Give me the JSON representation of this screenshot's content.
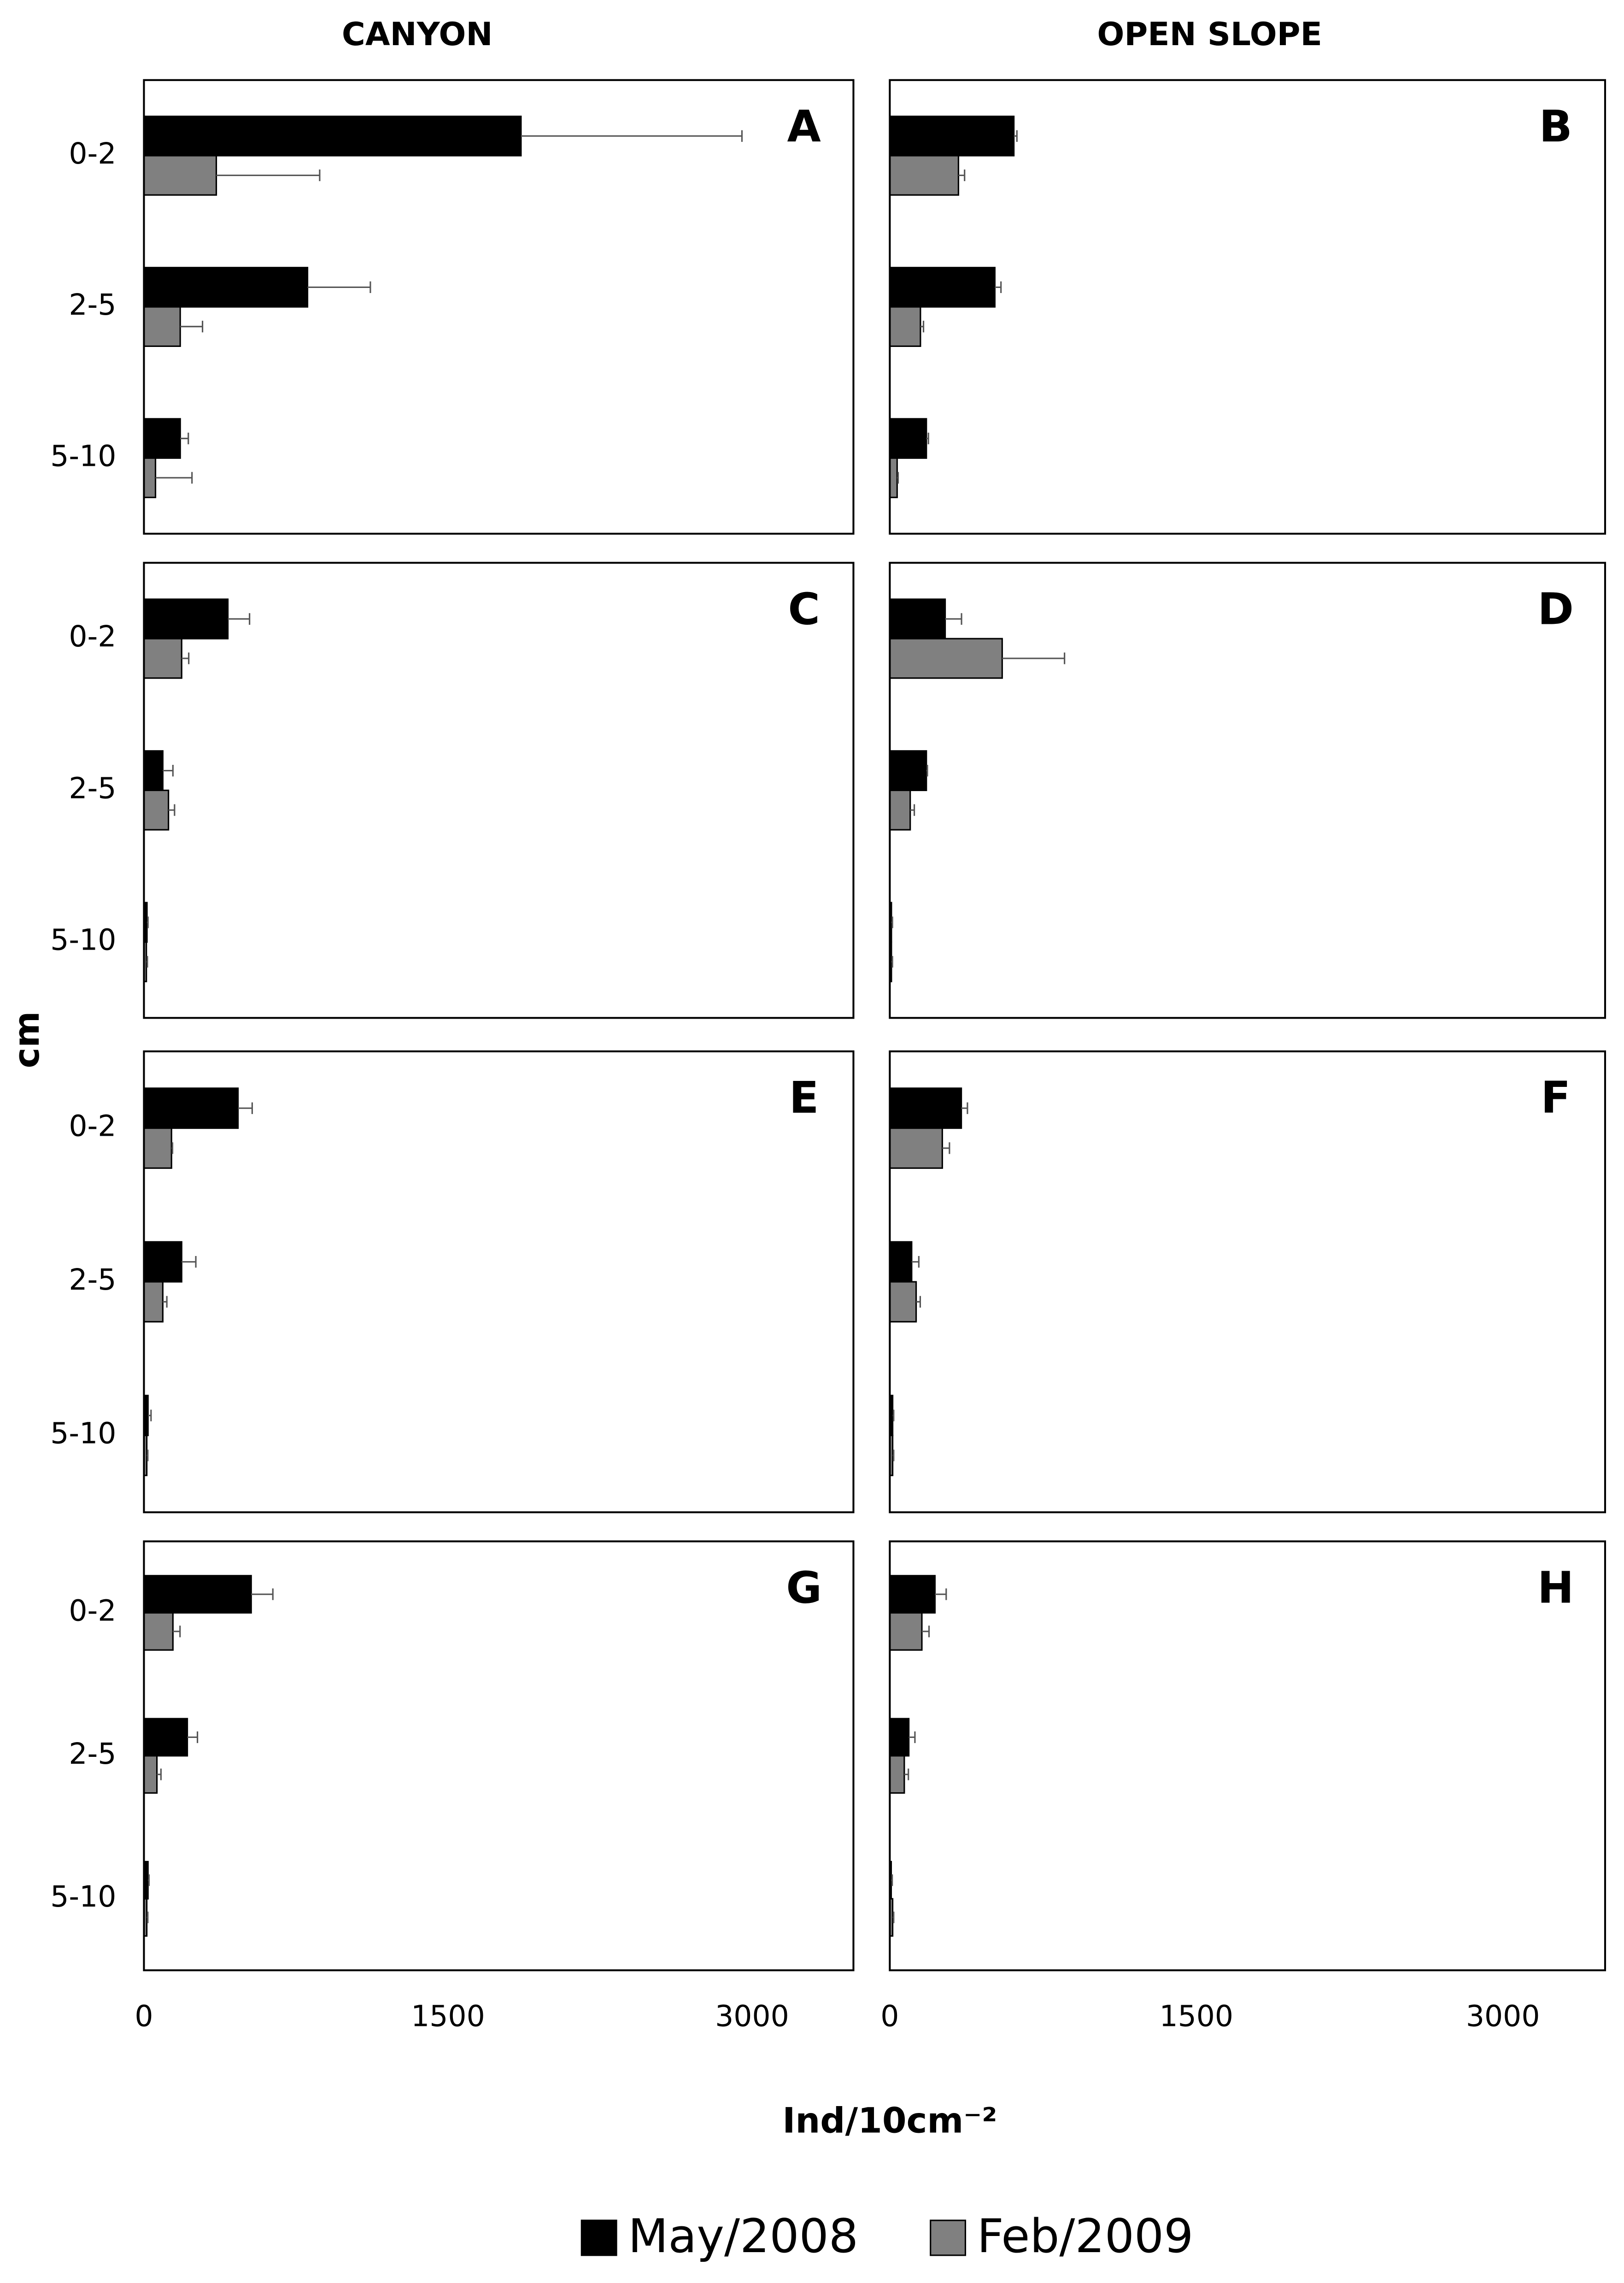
{
  "column_titles": [
    "CANYON",
    "OPEN SLOPE"
  ],
  "y_label": "cm",
  "x_label": "Ind/10cm⁻²",
  "chart_data": [
    {
      "type": "bar",
      "title": "A",
      "categories": [
        "0-2",
        "2-5",
        "5-10"
      ],
      "xlim": [
        0,
        3500
      ],
      "series": [
        {
          "name": "May/2008",
          "color": "#000000",
          "values": [
            1860,
            807,
            179
          ],
          "errors": [
            1090,
            310,
            40
          ]
        },
        {
          "name": "Feb/2009",
          "color": "#808080",
          "values": [
            357,
            179,
            57
          ],
          "errors": [
            510,
            110,
            180
          ]
        }
      ]
    },
    {
      "type": "bar",
      "title": "B",
      "categories": [
        "0-2",
        "2-5",
        "5-10"
      ],
      "xlim": [
        0,
        3500
      ],
      "series": [
        {
          "name": "May/2008",
          "color": "#000000",
          "values": [
            607,
            514,
            179
          ],
          "errors": [
            15,
            30,
            10
          ]
        },
        {
          "name": "Feb/2009",
          "color": "#808080",
          "values": [
            336,
            150,
            36
          ],
          "errors": [
            30,
            15,
            5
          ]
        }
      ]
    },
    {
      "type": "bar",
      "title": "C",
      "categories": [
        "0-2",
        "2-5",
        "5-10"
      ],
      "xlim": [
        0,
        3500
      ],
      "series": [
        {
          "name": "May/2008",
          "color": "#000000",
          "values": [
            414,
            93,
            15
          ],
          "errors": [
            107,
            50,
            5
          ]
        },
        {
          "name": "Feb/2009",
          "color": "#808080",
          "values": [
            186,
            121,
            12
          ],
          "errors": [
            35,
            30,
            5
          ]
        }
      ]
    },
    {
      "type": "bar",
      "title": "D",
      "categories": [
        "0-2",
        "2-5",
        "5-10"
      ],
      "xlim": [
        0,
        3500
      ],
      "series": [
        {
          "name": "May/2008",
          "color": "#000000",
          "values": [
            271,
            179,
            8
          ],
          "errors": [
            80,
            5,
            5
          ]
        },
        {
          "name": "Feb/2009",
          "color": "#808080",
          "values": [
            550,
            100,
            8
          ],
          "errors": [
            305,
            20,
            5
          ]
        }
      ]
    },
    {
      "type": "bar",
      "title": "E",
      "categories": [
        "0-2",
        "2-5",
        "5-10"
      ],
      "xlim": [
        0,
        3500
      ],
      "series": [
        {
          "name": "May/2008",
          "color": "#000000",
          "values": [
            464,
            186,
            20
          ],
          "errors": [
            70,
            70,
            15
          ]
        },
        {
          "name": "Feb/2009",
          "color": "#808080",
          "values": [
            136,
            93,
            14
          ],
          "errors": [
            5,
            20,
            5
          ]
        }
      ]
    },
    {
      "type": "bar",
      "title": "F",
      "categories": [
        "0-2",
        "2-5",
        "5-10"
      ],
      "xlim": [
        0,
        3500
      ],
      "series": [
        {
          "name": "May/2008",
          "color": "#000000",
          "values": [
            350,
            107,
            14
          ],
          "errors": [
            30,
            35,
            5
          ]
        },
        {
          "name": "Feb/2009",
          "color": "#808080",
          "values": [
            257,
            129,
            14
          ],
          "errors": [
            35,
            20,
            5
          ]
        }
      ]
    },
    {
      "type": "bar",
      "title": "G",
      "categories": [
        "0-2",
        "2-5",
        "5-10"
      ],
      "xlim": [
        0,
        3500
      ],
      "xticks": [
        0,
        1500,
        3000
      ],
      "series": [
        {
          "name": "May/2008",
          "color": "#000000",
          "values": [
            529,
            214,
            20
          ],
          "errors": [
            107,
            50,
            5
          ]
        },
        {
          "name": "Feb/2009",
          "color": "#808080",
          "values": [
            143,
            64,
            14
          ],
          "errors": [
            35,
            20,
            5
          ]
        }
      ]
    },
    {
      "type": "bar",
      "title": "H",
      "categories": [
        "0-2",
        "2-5",
        "5-10"
      ],
      "xlim": [
        0,
        3500
      ],
      "xticks": [
        0,
        1500,
        3000
      ],
      "series": [
        {
          "name": "May/2008",
          "color": "#000000",
          "values": [
            221,
            93,
            7
          ],
          "errors": [
            55,
            30,
            5
          ]
        },
        {
          "name": "Feb/2009",
          "color": "#808080",
          "values": [
            157,
            71,
            14
          ],
          "errors": [
            35,
            20,
            5
          ]
        }
      ]
    }
  ]
}
